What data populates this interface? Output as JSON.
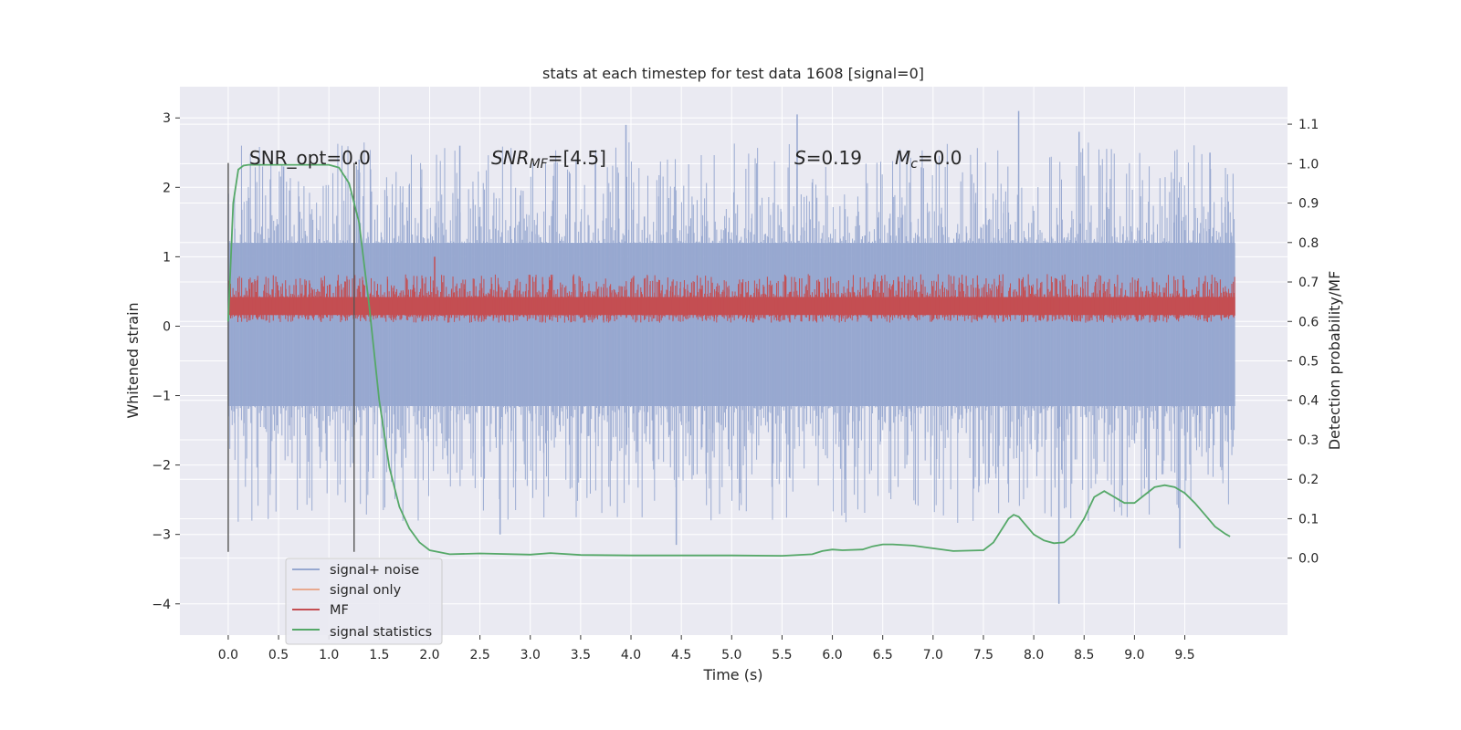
{
  "chart_data": {
    "type": "line",
    "title": "stats at each timestep for test data 1608 [signal=0]",
    "xlabel": "Time (s)",
    "ylabel": "Whitened strain",
    "ylabel_right": "Detection probability/MF",
    "xlim": [
      -0.48,
      10.52
    ],
    "ylim": [
      -4.45,
      3.45
    ],
    "ylim_right": [
      -0.195,
      1.195
    ],
    "x_ticks": [
      "0.0",
      "0.5",
      "1.0",
      "1.5",
      "2.0",
      "2.5",
      "3.0",
      "3.5",
      "4.0",
      "4.5",
      "5.0",
      "5.5",
      "6.0",
      "6.5",
      "7.0",
      "7.5",
      "8.0",
      "8.5",
      "9.0",
      "9.5"
    ],
    "y_ticks": [
      "3",
      "2",
      "1",
      "0",
      "−1",
      "−2",
      "−3",
      "−4"
    ],
    "y_right_ticks": [
      "1.1",
      "1.0",
      "0.9",
      "0.8",
      "0.7",
      "0.6",
      "0.5",
      "0.4",
      "0.3",
      "0.2",
      "0.1",
      "0.0"
    ],
    "grid": true,
    "legend_position": "lower-left",
    "annotations": {
      "snr_opt": "SNR_opt=0.0",
      "snr_mf_base": "SNR",
      "snr_mf_sub": "MF",
      "snr_mf_rest": "=[4.5]",
      "s_sym": "S",
      "s_rest": "=0.19",
      "mc_base": "M",
      "mc_sub": "c",
      "mc_rest": "=0.0"
    },
    "markers": {
      "vertical_lines_x": [
        0.0,
        1.25
      ],
      "vertical_lines_y_range": [
        -3.25,
        2.35
      ]
    },
    "series": [
      {
        "name": "signal+ noise",
        "color": "#97a8d0",
        "axis": "left",
        "x_range": [
          0.0,
          10.0
        ],
        "core_band": [
          -1.15,
          1.2
        ],
        "spike_peaks": [
          {
            "x": 0.55,
            "y": 2.3
          },
          {
            "x": 1.3,
            "y": 2.4
          },
          {
            "x": 2.3,
            "y": 2.6
          },
          {
            "x": 2.7,
            "y": -3.0
          },
          {
            "x": 3.95,
            "y": 2.9
          },
          {
            "x": 4.45,
            "y": -3.15
          },
          {
            "x": 5.65,
            "y": 3.05
          },
          {
            "x": 7.85,
            "y": 3.1
          },
          {
            "x": 8.25,
            "y": -4.0
          },
          {
            "x": 8.45,
            "y": 2.8
          },
          {
            "x": 9.45,
            "y": -3.2
          },
          {
            "x": 9.75,
            "y": 2.5
          }
        ]
      },
      {
        "name": "signal only",
        "color": "#e8a98f",
        "axis": "left",
        "values": []
      },
      {
        "name": "MF",
        "color": "#c44e52",
        "axis": "left",
        "x_range": [
          0.0,
          10.0
        ],
        "core_band": [
          0.05,
          0.75
        ],
        "peak": {
          "x": 2.05,
          "y": 1.0
        }
      },
      {
        "name": "signal statistics",
        "color": "#55a868",
        "axis": "right",
        "x": [
          0.0,
          0.05,
          0.1,
          0.15,
          0.2,
          0.3,
          0.5,
          0.8,
          1.0,
          1.1,
          1.2,
          1.3,
          1.4,
          1.5,
          1.6,
          1.7,
          1.8,
          1.9,
          2.0,
          2.2,
          2.5,
          3.0,
          3.2,
          3.5,
          4.0,
          4.5,
          5.0,
          5.5,
          5.8,
          5.9,
          6.0,
          6.1,
          6.3,
          6.4,
          6.5,
          6.6,
          6.8,
          7.0,
          7.2,
          7.5,
          7.6,
          7.7,
          7.75,
          7.8,
          7.85,
          7.9,
          8.0,
          8.1,
          8.2,
          8.3,
          8.4,
          8.5,
          8.6,
          8.7,
          8.8,
          8.9,
          9.0,
          9.1,
          9.2,
          9.3,
          9.4,
          9.5,
          9.6,
          9.7,
          9.8,
          9.9,
          9.95
        ],
        "values": [
          0.6,
          0.9,
          0.985,
          0.995,
          0.997,
          0.997,
          0.997,
          0.997,
          0.997,
          0.99,
          0.95,
          0.85,
          0.64,
          0.4,
          0.23,
          0.13,
          0.075,
          0.04,
          0.02,
          0.01,
          0.012,
          0.009,
          0.013,
          0.008,
          0.007,
          0.007,
          0.007,
          0.006,
          0.01,
          0.018,
          0.022,
          0.02,
          0.022,
          0.03,
          0.035,
          0.035,
          0.032,
          0.025,
          0.018,
          0.02,
          0.04,
          0.08,
          0.1,
          0.11,
          0.105,
          0.09,
          0.06,
          0.045,
          0.038,
          0.04,
          0.06,
          0.1,
          0.155,
          0.17,
          0.155,
          0.14,
          0.14,
          0.16,
          0.18,
          0.185,
          0.18,
          0.165,
          0.14,
          0.11,
          0.08,
          0.062,
          0.055
        ]
      }
    ]
  }
}
